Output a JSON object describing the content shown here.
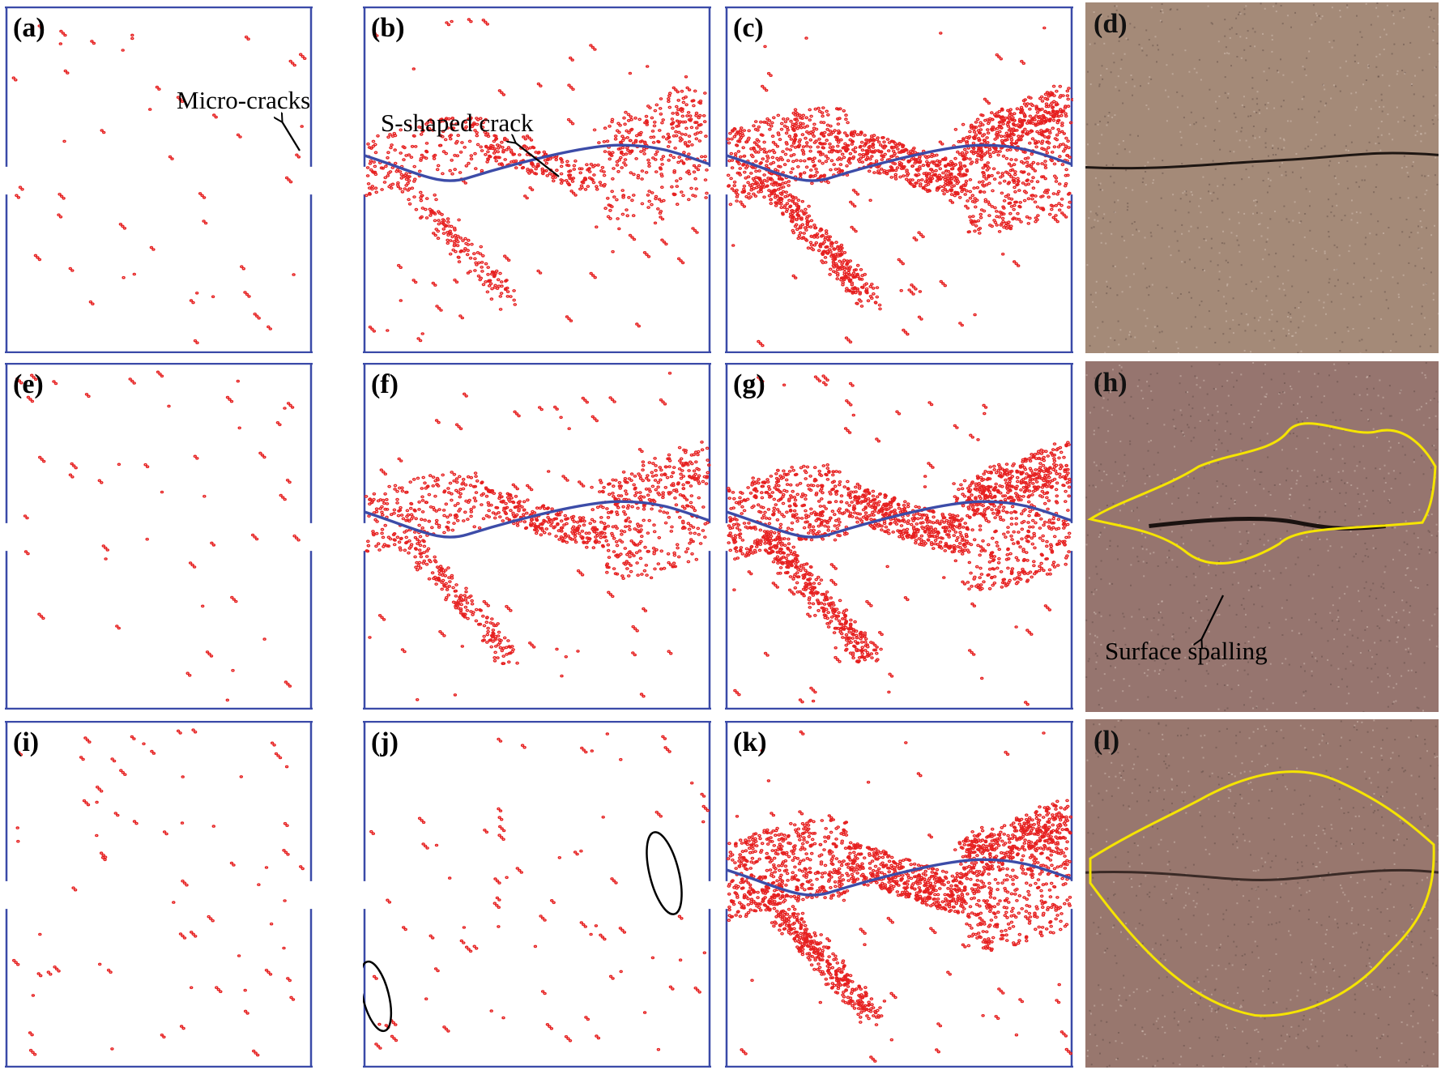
{
  "figure": {
    "panels": [
      {
        "id": "a",
        "label": "(a)",
        "kind": "sim",
        "row": 0,
        "col": 0,
        "curve": false,
        "density": 0.06
      },
      {
        "id": "b",
        "label": "(b)",
        "kind": "sim",
        "row": 0,
        "col": 1,
        "curve": true,
        "density": 0.45
      },
      {
        "id": "c",
        "label": "(c)",
        "kind": "sim",
        "row": 0,
        "col": 2,
        "curve": true,
        "density": 1.0
      },
      {
        "id": "d",
        "label": "(d)",
        "kind": "photo",
        "row": 0,
        "col": 3,
        "color": "#a48a78"
      },
      {
        "id": "e",
        "label": "(e)",
        "kind": "sim",
        "row": 1,
        "col": 0,
        "curve": false,
        "density": 0.06
      },
      {
        "id": "f",
        "label": "(f)",
        "kind": "sim",
        "row": 1,
        "col": 1,
        "curve": true,
        "density": 0.55
      },
      {
        "id": "g",
        "label": "(g)",
        "kind": "sim",
        "row": 1,
        "col": 2,
        "curve": true,
        "density": 1.0
      },
      {
        "id": "h",
        "label": "(h)",
        "kind": "photo",
        "row": 1,
        "col": 3,
        "color": "#96756f"
      },
      {
        "id": "i",
        "label": "(i)",
        "kind": "sim",
        "row": 2,
        "col": 0,
        "curve": false,
        "density": 0.12
      },
      {
        "id": "j",
        "label": "(j)",
        "kind": "sim",
        "row": 2,
        "col": 1,
        "curve": false,
        "density": 0.15
      },
      {
        "id": "k",
        "label": "(k)",
        "kind": "sim",
        "row": 2,
        "col": 2,
        "curve": true,
        "density": 1.1
      },
      {
        "id": "l",
        "label": "(l)",
        "kind": "photo",
        "row": 2,
        "col": 3,
        "color": "#98776e"
      }
    ],
    "annotations": {
      "micro_cracks": "Micro-cracks",
      "s_shaped_crack": "S-shaped crack",
      "surface_spalling": "Surface spalling"
    },
    "colors": {
      "frame": "#3a4aa8",
      "curve": "#3c4ca8",
      "cracks": "#e62020",
      "outline": "#f5e400",
      "ellipse": "#000000"
    }
  }
}
